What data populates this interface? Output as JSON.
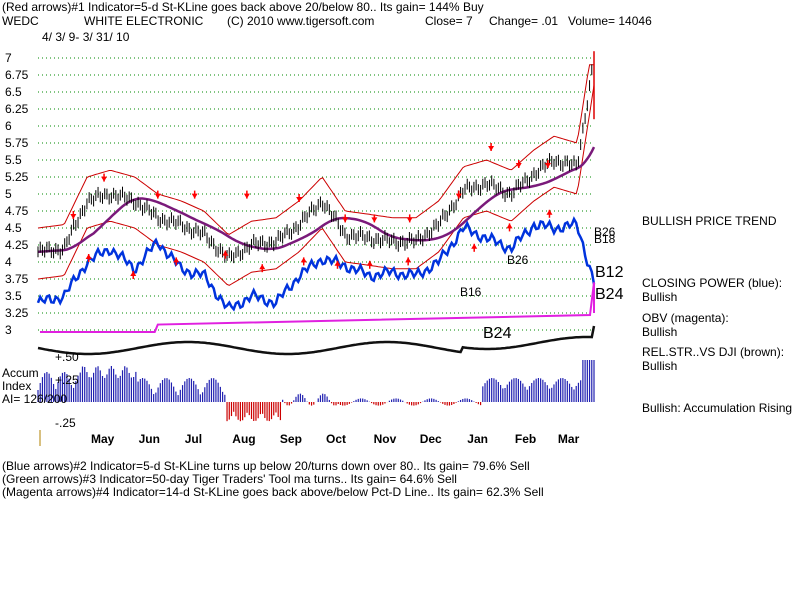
{
  "header": {
    "line1": "(Red arrows)#1 Indicator=5-d St-KLine goes back above 20/below 80.. Its gain= 144% Buy",
    "symbol": "WEDC",
    "company": "WHITE ELECTRONIC",
    "copyright": "(C) 2010 www.tigersoft.com",
    "close": "Close=  7",
    "change": "Change= .01",
    "volume": "Volume= 14046",
    "date": "4/ 3/ 9- 3/ 31/ 10"
  },
  "footer": {
    "line1": "(Blue arrows)#2 Indicator=5-d St-KLine turns up below 20/turns down over 80.. Its gain= 79.6% Sell",
    "line2": "(Green arrows)#3 Indicator=50-day Tiger Traders' Tool ma turns.. Its gain= 64.6% Sell",
    "line3": "(Magenta arrows)#4 Indicator=14-d St-KLine goes back above/below Pct-D Line.. Its gain= 62.3% Sell"
  },
  "side_labels": {
    "price_trend": "BULLISH PRICE TREND",
    "closing_power": "CLOSING POWER (blue):",
    "closing_power_value": "Bullish",
    "obv": "OBV (magenta):",
    "obv_value": "Bullish",
    "relstr": "REL.STR..VS DJI (brown):",
    "relstr_value": "Bullish",
    "accum_rising": "Bullish: Accumulation Rising"
  },
  "accum": {
    "title1": "Accum",
    "title2": "Index",
    "ai": "AI= 126/200",
    "tick_p50": "+.50",
    "tick_p25": "+.25",
    "tick_m25": "-.25"
  },
  "annotations": {
    "b12": "B12",
    "b24_right": "B24",
    "b24_mid": "B24",
    "b26a": "B26",
    "b26b": "B26",
    "b18": "B18",
    "b16": "B16"
  },
  "colors": {
    "price": "#000000",
    "closing_power": "#0033dd",
    "obv": "#e020e0",
    "rel_strength": "#6a1f1f",
    "ma50": "#7a1a7a",
    "bands": "#cc0000",
    "buy_arrow": "#ff0000",
    "sell_arrow": "#dd0000",
    "grid": "#008800",
    "accum_pos": "#2020b0",
    "accum_neg": "#cc0000"
  },
  "chart_data": {
    "type": "line",
    "title": "WEDC WHITE ELECTRONIC",
    "y_ticks": [
      "7",
      "6.75",
      "6.5",
      "6.25",
      "6",
      "5.75",
      "5.5",
      "5.25",
      "5",
      "4.75",
      "4.5",
      "4.25",
      "4",
      "3.75",
      "3.5",
      "3.25",
      "3"
    ],
    "ylim": [
      3,
      7
    ],
    "x_months": [
      "May",
      "Jun",
      "Jul",
      "Aug",
      "Sep",
      "Oct",
      "Nov",
      "Dec",
      "Jan",
      "Feb",
      "Mar"
    ],
    "series": [
      {
        "name": "Close",
        "x": [
          "2009-04-03",
          "2009-04-20",
          "2009-05-05",
          "2009-05-20",
          "2009-06-05",
          "2009-06-20",
          "2009-07-05",
          "2009-07-20",
          "2009-08-05",
          "2009-08-20",
          "2009-09-05",
          "2009-09-20",
          "2009-10-05",
          "2009-10-20",
          "2009-11-05",
          "2009-11-20",
          "2009-12-05",
          "2009-12-20",
          "2010-01-05",
          "2010-01-20",
          "2010-02-05",
          "2010-02-20",
          "2010-03-05",
          "2010-03-20",
          "2010-03-31"
        ],
        "values": [
          4.15,
          4.2,
          4.9,
          5.0,
          4.9,
          4.65,
          4.55,
          4.4,
          4.05,
          4.25,
          4.3,
          4.55,
          4.9,
          4.4,
          4.35,
          4.3,
          4.3,
          4.55,
          5.05,
          5.15,
          5.0,
          5.3,
          5.5,
          5.4,
          7.0
        ]
      },
      {
        "name": "Closing Power",
        "x": [
          "2009-04-03",
          "2009-04-20",
          "2009-05-05",
          "2009-05-20",
          "2009-06-05",
          "2009-06-20",
          "2009-07-05",
          "2009-07-20",
          "2009-08-05",
          "2009-08-20",
          "2009-09-05",
          "2009-09-20",
          "2009-10-05",
          "2009-10-20",
          "2009-11-05",
          "2009-11-20",
          "2009-12-05",
          "2009-12-20",
          "2010-01-05",
          "2010-01-20",
          "2010-02-05",
          "2010-02-20",
          "2010-03-05",
          "2010-03-20",
          "2010-03-31"
        ],
        "values": [
          3.4,
          3.5,
          4.0,
          4.2,
          3.9,
          4.3,
          3.9,
          3.8,
          3.3,
          3.5,
          3.4,
          3.8,
          4.05,
          3.95,
          3.8,
          3.85,
          3.8,
          4.0,
          4.5,
          4.35,
          4.2,
          4.55,
          4.5,
          4.55,
          3.7
        ]
      }
    ]
  }
}
